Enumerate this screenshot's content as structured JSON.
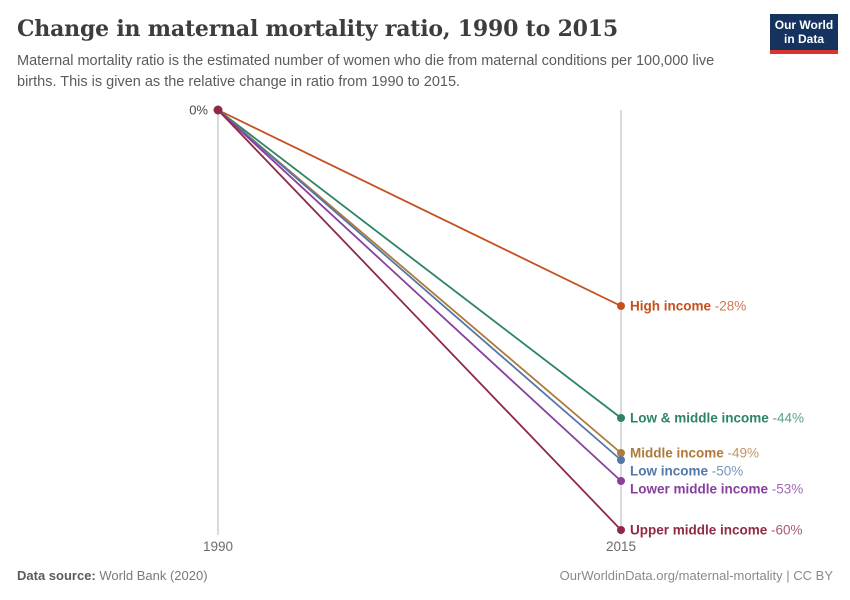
{
  "header": {
    "title": "Change in maternal mortality ratio, 1990 to 2015",
    "subtitle": "Maternal mortality ratio is the estimated number of women who die from maternal conditions per 100,000 live births. This is given as the relative change in ratio from 1990 to 2015."
  },
  "logo": {
    "line1": "Our World",
    "line2": "in Data",
    "bg_color": "#15335e",
    "stripe_color": "#d7352e"
  },
  "chart_data": {
    "type": "line",
    "subtype": "slope",
    "title": "Change in maternal mortality ratio, 1990 to 2015",
    "x": [
      1990,
      2015
    ],
    "x_tick_labels": [
      "1990",
      "2015"
    ],
    "zero_label": "0%",
    "ylim": [
      -60,
      0
    ],
    "grid": "vertical-gridlines-only",
    "legend": "inline-right-of-endpoints",
    "gridline_color": "#d3d3d3",
    "tick_color": "#6b6b6b",
    "series": [
      {
        "name": "High income",
        "values": [
          0,
          -28
        ],
        "display_value": "-28%",
        "color": "#c4501f"
      },
      {
        "name": "Low & middle income",
        "values": [
          0,
          -44
        ],
        "display_value": "-44%",
        "color": "#2c8465"
      },
      {
        "name": "Middle income",
        "values": [
          0,
          -49
        ],
        "display_value": "-49%",
        "color": "#ad7a39"
      },
      {
        "name": "Low income",
        "values": [
          0,
          -50
        ],
        "display_value": "-50%",
        "color": "#5377a8"
      },
      {
        "name": "Lower middle income",
        "values": [
          0,
          -53
        ],
        "display_value": "-53%",
        "color": "#883f9e"
      },
      {
        "name": "Upper middle income",
        "values": [
          0,
          -60
        ],
        "display_value": "-60%",
        "color": "#8f2a45"
      }
    ]
  },
  "footer": {
    "source_label": "Data source:",
    "source_value": "World Bank (2020)",
    "credit": "OurWorldinData.org/maternal-mortality | CC BY"
  }
}
